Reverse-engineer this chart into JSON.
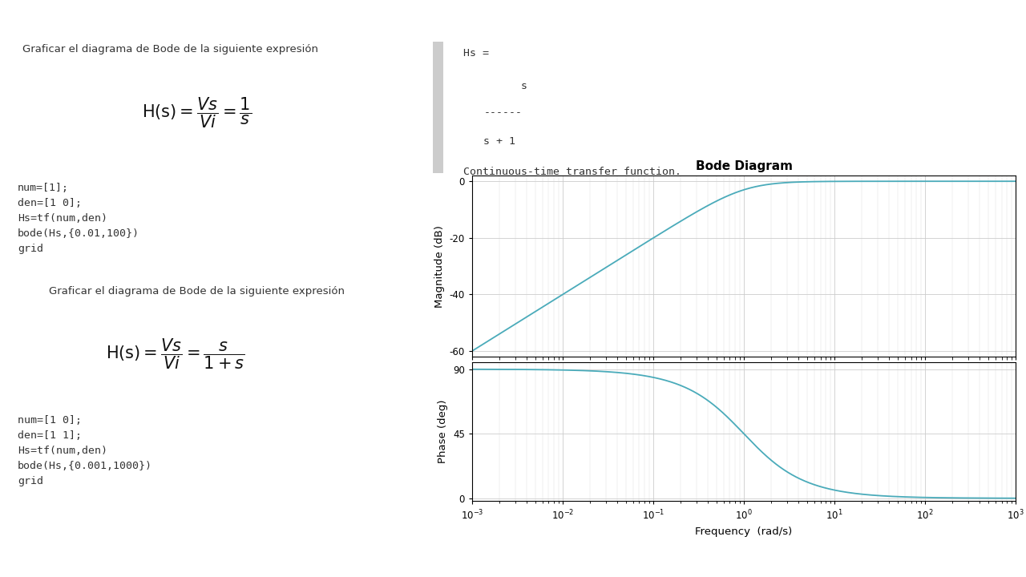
{
  "title": "Bode Diagram",
  "mag_ylabel": "Magnitude (dB)",
  "phase_ylabel": "Phase (deg)",
  "freq_xlabel": "Frequency  (rad/s)",
  "freq_min": 0.001,
  "freq_max": 1000,
  "line_color": "#4AABBA",
  "grid_color": "#CCCCCC",
  "bg_color": "#FFFFFF",
  "code_bg": "#EEEEEE",
  "page_bg": "#FFFFFF",
  "dark_bar": "#111111",
  "text1": "Graficar el diagrama de Bode de la siguiente expresión",
  "text2": "Graficar el diagrama de Bode de la siguiente expresión",
  "code1": "num=[1];\nden=[1 0];\nHs=tf(num,den)\nbode(Hs,{0.01,100})\ngrid",
  "code2": "num=[1 0];\nden=[1 1];\nHs=tf(num,den)\nbode(Hs,{0.001,1000})\ngrid",
  "hs_line1": "Hs =",
  "hs_line2": "    s",
  "hs_line3": "------",
  "hs_line4": "s + 1",
  "continuous_text": "Continuous-time transfer function.",
  "scrollbar_color": "#AAAAAA",
  "divider_color": "#BBBBBB"
}
